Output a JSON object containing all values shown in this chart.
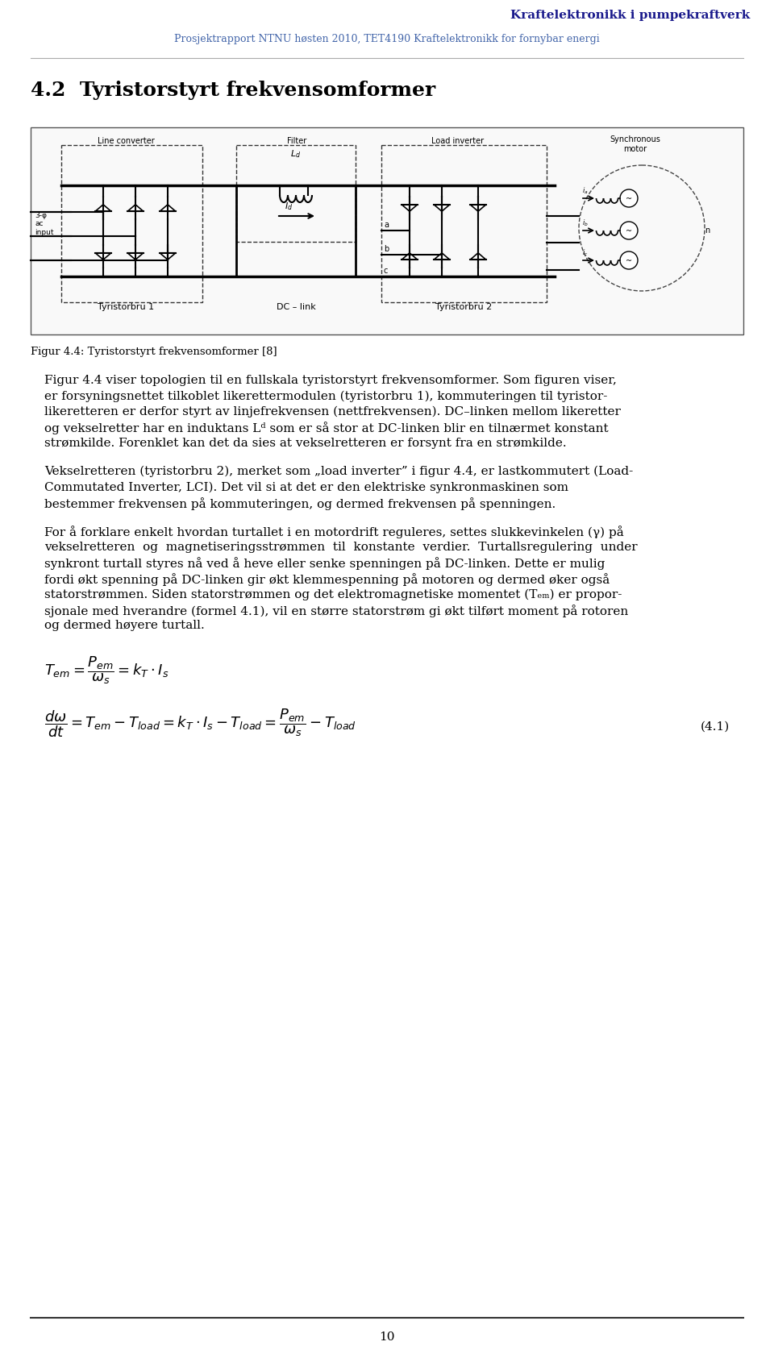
{
  "header_title": "Kraftelektronikk i pumpekraftverk",
  "header_subtitle": "Prosjektrapport NTNU høsten 2010, TET4190 Kraftelektronikk for fornybar energi",
  "header_title_color": "#1a1a8c",
  "header_subtitle_color": "#4466aa",
  "section_title": "4.2  Tyristorstyrt frekvensomformer",
  "fig_caption": "Figur 4.4: Tyristorstyrt frekvensomformer [8]",
  "para1_line1": "Figur 4.4 viser topologien til en fullskala tyristorstyrt frekvensomformer. Som figuren viser,",
  "para1_line2": "er forsyningsnettet tilkoblet likerettermodulen (tyristorbru 1), kommuteringen til tyristor-",
  "para1_line3": "likeretteren er derfor styrt av linjefrekvensen (nettfrekvensen). DC–linken mellom likeretter",
  "para1_line4": "og vekselretter har en induktans L",
  "para1_line4b": "d",
  "para1_line4c": " som er så stor at DC-linken blir en tilnærmet konstant",
  "para1_line5": "strømkilde. Forenklet kan det da sies at vekselretteren er forsynt fra en strømkilde.",
  "para2_line1": "Vekselretteren (tyristorbru 2), merket som „load inverter” i figur 4.4, er lastkommutert (Load-",
  "para2_line2": "Commutated Inverter, LCI). Det vil si at det er den elektriske synkronmaskinen som",
  "para2_line3": "bestemmer frekvensen på kommuteringen, og dermed frekvensen på spenningen.",
  "para3_line1": "For å forklare enkelt hvordan turtallet i en motordrift reguleres, settes slukkevinkelen (γ) på",
  "para3_line2": "vekselretteren  og  magnetiseringsstrømmen  til  konstante  verdier.  Turtallsregulering  under",
  "para3_line3": "synkront turtall styres nå ved å heve eller senke spenningen på DC-linken. Dette er mulig",
  "para3_line4": "fordi økt spenning på DC-linken gir økt klemmespenning på motoren og dermed øker også",
  "para3_line5": "statorstrømmen. Siden statorstrømmen og det elektromagnetiske momentet (T",
  "para3_line5b": "em",
  "para3_line5c": ") er propor-",
  "para3_line6": "sjonale med hverandre (formel 4.1), vil en større statorstrøm gi økt tilført moment på rotoren",
  "para3_line7": "og dermed høyere turtall.",
  "page_number": "10",
  "background_color": "#ffffff",
  "text_color": "#000000",
  "line_color": "#888888",
  "diagram_bg": "#f8f8f8"
}
